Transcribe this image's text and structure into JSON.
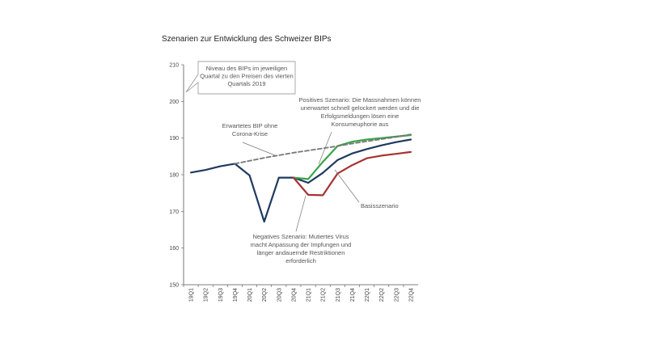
{
  "chart_data": {
    "type": "line",
    "title": "Szenarien zur Entwicklung des Schweizer BIPs",
    "xlabel": "",
    "ylabel": "",
    "ylim": [
      150,
      210
    ],
    "yticks": [
      150,
      160,
      170,
      180,
      190,
      200,
      210
    ],
    "grid": false,
    "legend": "none",
    "categories": [
      "19Q1",
      "19Q2",
      "19Q3",
      "19Q4",
      "20Q1",
      "20Q2",
      "20Q3",
      "20Q4",
      "21Q1",
      "21Q2",
      "21Q3",
      "21Q4",
      "22Q1",
      "22Q2",
      "22Q3",
      "22Q4"
    ],
    "series": [
      {
        "key": "basis",
        "color": "#1f3a5f",
        "dashed": false,
        "values": [
          180.6,
          181.3,
          182.3,
          183.0,
          179.8,
          167.2,
          179.2,
          179.2,
          177.8,
          180.5,
          184.0,
          185.8,
          187.0,
          188.0,
          188.9,
          189.6
        ]
      },
      {
        "key": "positiv",
        "color": "#3aa34a",
        "dashed": false,
        "values": [
          null,
          null,
          null,
          null,
          null,
          null,
          null,
          179.2,
          178.8,
          183.5,
          187.8,
          189.0,
          189.6,
          190.0,
          190.4,
          190.8
        ]
      },
      {
        "key": "negativ",
        "color": "#a83232",
        "dashed": false,
        "values": [
          null,
          null,
          null,
          null,
          null,
          null,
          null,
          179.2,
          174.5,
          174.4,
          180.3,
          182.6,
          184.5,
          185.2,
          185.7,
          186.2
        ]
      },
      {
        "key": "ohne_corona",
        "color": "#777777",
        "dashed": true,
        "values": [
          null,
          null,
          null,
          183.0,
          183.8,
          184.6,
          185.3,
          186.0,
          186.6,
          187.2,
          187.8,
          188.5,
          189.1,
          189.7,
          190.3,
          191.0
        ]
      }
    ],
    "annotations": {
      "niveau": [
        "Niveau des BIPs im jeweiligen",
        "Quartal zu den Preisen des vierten",
        "Quartals 2019"
      ],
      "ohne_corona": [
        "Erwartetes BIP ohne",
        "Corona-Krise"
      ],
      "positiv": [
        "Positives Szenario: Die Massnahmen können",
        "unerwartet schnell gelockert werden und die",
        "Erfolgsmeldungen lösen eine",
        "Konsumeuphorie aus"
      ],
      "basis": [
        "Basisszenario"
      ],
      "negativ": [
        "Negatives Szenario: Mutiertes Virus",
        "macht Anpassung der Impfungen und",
        "länger andauernde Restriktionen",
        "erforderlich"
      ]
    }
  }
}
